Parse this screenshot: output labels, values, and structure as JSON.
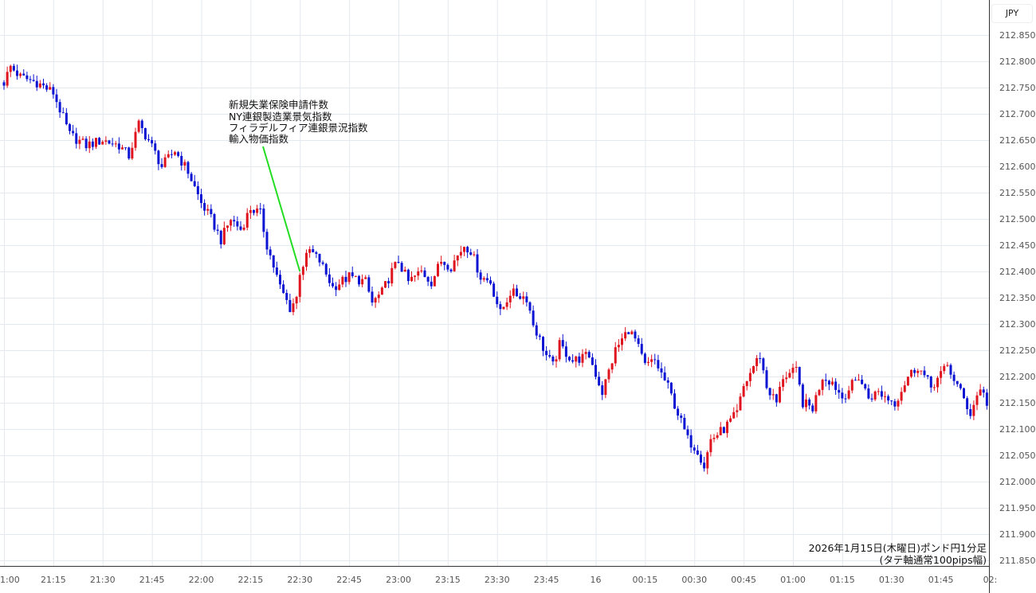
{
  "currency_badge": "JPY",
  "chart_data": {
    "type": "candlestick",
    "title": "2026年1月15日(木曜日)ポンド円1分足",
    "subtitle": "(タテ軸通常100pips幅)",
    "ylim": [
      211.85,
      212.85
    ],
    "y_ticks": [
      "212.850",
      "212.800",
      "212.750",
      "212.700",
      "212.650",
      "212.600",
      "212.550",
      "212.500",
      "212.450",
      "212.400",
      "212.350",
      "212.300",
      "212.250",
      "212.200",
      "212.150",
      "212.100",
      "212.050",
      "212.000",
      "211.950",
      "211.900",
      "211.850"
    ],
    "x_ticks": [
      {
        "label": "1:00",
        "minute": 0
      },
      {
        "label": "21:15",
        "minute": 15
      },
      {
        "label": "21:30",
        "minute": 30
      },
      {
        "label": "21:45",
        "minute": 45
      },
      {
        "label": "22:00",
        "minute": 60
      },
      {
        "label": "22:15",
        "minute": 75
      },
      {
        "label": "22:30",
        "minute": 90
      },
      {
        "label": "22:45",
        "minute": 105
      },
      {
        "label": "23:00",
        "minute": 120
      },
      {
        "label": "23:15",
        "minute": 135
      },
      {
        "label": "23:30",
        "minute": 150
      },
      {
        "label": "23:45",
        "minute": 165
      },
      {
        "label": "16",
        "minute": 180
      },
      {
        "label": "00:15",
        "minute": 195
      },
      {
        "label": "00:30",
        "minute": 210
      },
      {
        "label": "00:45",
        "minute": 225
      },
      {
        "label": "01:00",
        "minute": 240
      },
      {
        "label": "01:15",
        "minute": 255
      },
      {
        "label": "01:30",
        "minute": 270
      },
      {
        "label": "01:45",
        "minute": 285
      },
      {
        "label": "02:",
        "minute": 300
      }
    ],
    "up_color": "#e0141e",
    "down_color": "#0a14d2",
    "grid": true,
    "price_path": [
      [
        0,
        212.76
      ],
      [
        2,
        212.79
      ],
      [
        5,
        212.77
      ],
      [
        10,
        212.76
      ],
      [
        15,
        212.74
      ],
      [
        20,
        212.66
      ],
      [
        25,
        212.64
      ],
      [
        30,
        212.65
      ],
      [
        35,
        212.64
      ],
      [
        38,
        212.62
      ],
      [
        41,
        212.68
      ],
      [
        44,
        212.65
      ],
      [
        48,
        212.6
      ],
      [
        52,
        212.63
      ],
      [
        56,
        212.59
      ],
      [
        60,
        212.53
      ],
      [
        63,
        212.5
      ],
      [
        66,
        212.46
      ],
      [
        69,
        212.5
      ],
      [
        72,
        212.48
      ],
      [
        75,
        212.52
      ],
      [
        78,
        212.51
      ],
      [
        80,
        212.45
      ],
      [
        84,
        212.37
      ],
      [
        87,
        212.33
      ],
      [
        89,
        212.35
      ],
      [
        90,
        212.4
      ],
      [
        93,
        212.44
      ],
      [
        96,
        212.42
      ],
      [
        100,
        212.37
      ],
      [
        105,
        212.39
      ],
      [
        110,
        212.38
      ],
      [
        112,
        212.34
      ],
      [
        115,
        212.36
      ],
      [
        118,
        212.4
      ],
      [
        120,
        212.42
      ],
      [
        123,
        212.38
      ],
      [
        127,
        212.4
      ],
      [
        130,
        212.38
      ],
      [
        133,
        212.42
      ],
      [
        136,
        212.41
      ],
      [
        140,
        212.45
      ],
      [
        142,
        212.44
      ],
      [
        145,
        212.39
      ],
      [
        148,
        212.38
      ],
      [
        151,
        212.32
      ],
      [
        154,
        212.36
      ],
      [
        159,
        212.35
      ],
      [
        161,
        212.3
      ],
      [
        165,
        212.24
      ],
      [
        167,
        212.22
      ],
      [
        169,
        212.26
      ],
      [
        173,
        212.23
      ],
      [
        178,
        212.24
      ],
      [
        182,
        212.17
      ],
      [
        184,
        212.21
      ],
      [
        186,
        212.25
      ],
      [
        190,
        212.29
      ],
      [
        192,
        212.27
      ],
      [
        195,
        212.22
      ],
      [
        198,
        212.23
      ],
      [
        202,
        212.18
      ],
      [
        205,
        212.13
      ],
      [
        208,
        212.08
      ],
      [
        211,
        212.06
      ],
      [
        213,
        212.03
      ],
      [
        215,
        212.08
      ],
      [
        219,
        212.1
      ],
      [
        223,
        212.13
      ],
      [
        225,
        212.18
      ],
      [
        228,
        212.22
      ],
      [
        230,
        212.24
      ],
      [
        232,
        212.18
      ],
      [
        235,
        212.15
      ],
      [
        237,
        212.2
      ],
      [
        241,
        212.21
      ],
      [
        243,
        212.15
      ],
      [
        246,
        212.14
      ],
      [
        249,
        212.2
      ],
      [
        252,
        212.19
      ],
      [
        255,
        212.16
      ],
      [
        260,
        212.2
      ],
      [
        263,
        212.16
      ],
      [
        266,
        212.17
      ],
      [
        271,
        212.15
      ],
      [
        275,
        212.2
      ],
      [
        278,
        212.22
      ],
      [
        282,
        212.18
      ],
      [
        287,
        212.22
      ],
      [
        291,
        212.17
      ],
      [
        294,
        212.13
      ],
      [
        297,
        212.18
      ],
      [
        299,
        212.15
      ]
    ],
    "annotation": {
      "event_minute": 90,
      "event_price": 212.4,
      "lines": [
        "新規失業保険申請件数",
        "NY連銀製造業景気指数",
        "フィラデルフィア連銀景況指数",
        "輸入物価指数"
      ],
      "color": "#22dd22"
    }
  }
}
